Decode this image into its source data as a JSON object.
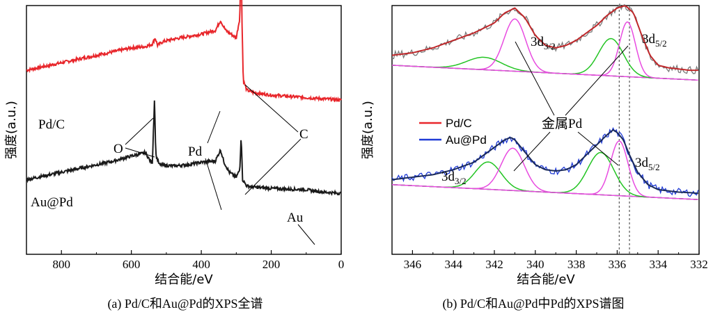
{
  "captions": {
    "a": "(a) Pd/C和Au@Pd的XPS全谱",
    "b": "(b) Pd/C和Au@Pd中Pd的XPS谱图"
  },
  "colors": {
    "pdc": "#e8262b",
    "aupd": "#1a1a1a",
    "aupd_b": "#1f3ad6",
    "fit_total": "#c0282b",
    "fit_total_b": "#1a2a5a",
    "green": "#22c422",
    "magenta": "#e84be0",
    "base": "#5a6a8a",
    "dashed": "#555555"
  },
  "chart_data": [
    {
      "type": "line",
      "panel": "a",
      "xlabel": "结合能/eV",
      "ylabel": "强度(a.u.)",
      "xlim": [
        900,
        0
      ],
      "x_ticks": [
        "800",
        "600",
        "400",
        "200",
        "0"
      ],
      "series": [
        {
          "name": "Pd/C",
          "x": [
            900,
            850,
            800,
            750,
            700,
            650,
            600,
            560,
            540,
            532,
            525,
            510,
            480,
            440,
            400,
            360,
            345,
            338,
            330,
            310,
            300,
            290,
            286,
            284,
            280,
            270,
            250,
            200,
            150,
            100,
            50,
            0
          ],
          "y": [
            0.74,
            0.755,
            0.77,
            0.785,
            0.8,
            0.815,
            0.83,
            0.835,
            0.845,
            0.87,
            0.84,
            0.855,
            0.865,
            0.875,
            0.885,
            0.9,
            0.94,
            0.92,
            0.9,
            0.88,
            0.87,
            0.95,
            1.22,
            0.96,
            0.7,
            0.66,
            0.65,
            0.64,
            0.635,
            0.63,
            0.625,
            0.62
          ]
        },
        {
          "name": "Au@Pd",
          "x": [
            900,
            850,
            800,
            750,
            700,
            650,
            600,
            570,
            560,
            548,
            540,
            534,
            530,
            520,
            480,
            440,
            400,
            360,
            345,
            335,
            320,
            310,
            300,
            290,
            286,
            282,
            270,
            250,
            200,
            150,
            100,
            80,
            50,
            0
          ],
          "y": [
            0.3,
            0.315,
            0.33,
            0.345,
            0.36,
            0.375,
            0.395,
            0.405,
            0.41,
            0.38,
            0.37,
            0.62,
            0.4,
            0.36,
            0.355,
            0.36,
            0.37,
            0.375,
            0.42,
            0.37,
            0.33,
            0.32,
            0.31,
            0.34,
            0.48,
            0.3,
            0.275,
            0.27,
            0.265,
            0.262,
            0.26,
            0.255,
            0.25,
            0.245
          ]
        }
      ],
      "annotations": [
        "Pd/C",
        "Au@Pd",
        "O",
        "Pd",
        "C",
        "Au"
      ]
    },
    {
      "type": "line",
      "panel": "b",
      "xlabel": "结合能/eV",
      "ylabel": "强度(a.u.)",
      "xlim": [
        347,
        332
      ],
      "x_ticks": [
        "346",
        "344",
        "342",
        "340",
        "338",
        "336",
        "334",
        "332"
      ],
      "dashed_lines_x": [
        335.9,
        335.4
      ],
      "legend": [
        "Pd/C",
        "Au@Pd"
      ],
      "legend_placement": "center-left",
      "series": [
        {
          "name": "Pd/C",
          "x": [
            347,
            346,
            345,
            344,
            343,
            342,
            341.5,
            341,
            340.5,
            340,
            339.5,
            339,
            338.5,
            338,
            337.5,
            337,
            336.5,
            336,
            335.6,
            335.2,
            334.8,
            334.4,
            334,
            333.5,
            333,
            332.5,
            332
          ],
          "y": [
            0.8,
            0.81,
            0.83,
            0.86,
            0.89,
            0.93,
            0.97,
            0.99,
            0.95,
            0.88,
            0.84,
            0.83,
            0.84,
            0.86,
            0.89,
            0.92,
            0.96,
            0.99,
            1.0,
            0.97,
            0.88,
            0.8,
            0.76,
            0.75,
            0.745,
            0.74,
            0.74
          ]
        },
        {
          "name": "Au@Pd",
          "x": [
            347,
            346,
            345,
            344,
            343,
            342.5,
            342,
            341.5,
            341.2,
            341,
            340.5,
            340,
            339.5,
            339,
            338.5,
            338,
            337.5,
            337,
            336.5,
            336.2,
            336,
            335.7,
            335.4,
            335,
            334.5,
            334,
            333.5,
            333,
            332.5,
            332
          ],
          "y": [
            0.3,
            0.31,
            0.32,
            0.34,
            0.37,
            0.4,
            0.43,
            0.46,
            0.47,
            0.46,
            0.41,
            0.36,
            0.34,
            0.335,
            0.34,
            0.36,
            0.4,
            0.44,
            0.48,
            0.5,
            0.49,
            0.46,
            0.4,
            0.33,
            0.28,
            0.26,
            0.255,
            0.25,
            0.248,
            0.245
          ]
        }
      ],
      "annotations": [
        "3d3/2",
        "3d5/2",
        "金属Pd",
        "3d3/2",
        "3d5/2"
      ]
    }
  ],
  "labels": {
    "a_pdc": "Pd/C",
    "a_aupd": "Au@Pd",
    "a_O": "O",
    "a_Pd": "Pd",
    "a_C": "C",
    "a_Au": "Au",
    "b_3d32_top_main": "3d",
    "b_3d32_top_sub": "3/2",
    "b_3d52_top_main": "3d",
    "b_3d52_top_sub": "5/2",
    "b_metal": "金属Pd",
    "b_3d32_bot_main": "3d",
    "b_3d32_bot_sub": "3/2",
    "b_3d52_bot_main": "3d",
    "b_3d52_bot_sub": "5/2"
  }
}
